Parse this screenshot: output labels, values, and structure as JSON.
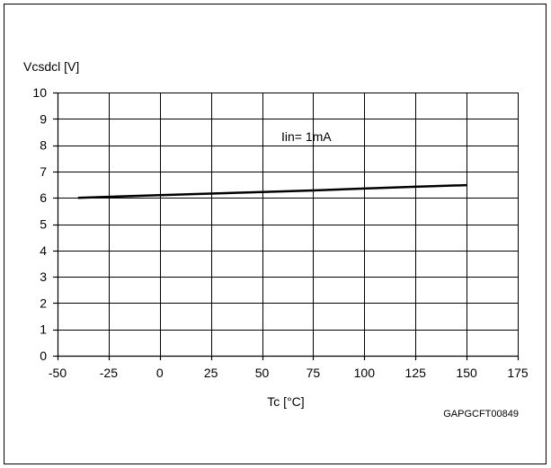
{
  "chart_data": {
    "type": "line",
    "ylabel": "Vcsdcl [V]",
    "xlabel": "Tc [°C]",
    "annotation": "Iin= 1mA",
    "figure_code": "GAPGCFT00849",
    "xlim": [
      -50,
      175
    ],
    "ylim": [
      0,
      10
    ],
    "x_ticks": [
      -50,
      -25,
      0,
      25,
      50,
      75,
      100,
      125,
      150,
      175
    ],
    "y_ticks": [
      0,
      1,
      2,
      3,
      4,
      5,
      6,
      7,
      8,
      9,
      10
    ],
    "grid": true,
    "series": [
      {
        "x": [
          -40,
          0,
          25,
          50,
          75,
          100,
          125,
          150
        ],
        "y": [
          6.0,
          6.1,
          6.16,
          6.22,
          6.28,
          6.35,
          6.42,
          6.48
        ],
        "color": "#000000"
      }
    ]
  }
}
